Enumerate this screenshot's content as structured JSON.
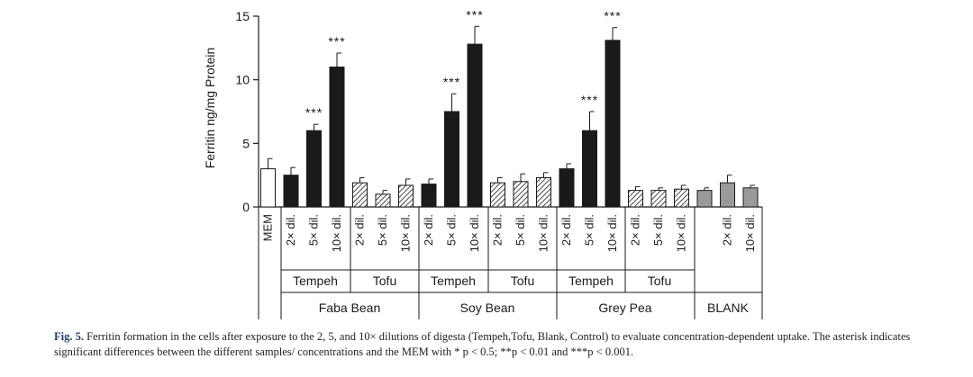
{
  "chart_data": {
    "type": "bar",
    "ylabel": "Ferritin ng/mg Protein",
    "ylim": [
      0,
      15
    ],
    "yticks": [
      "0",
      "5",
      "10",
      "15"
    ],
    "grid": false,
    "legend": "none",
    "colors": {
      "control": "#ffffff",
      "tempeh": "#1a1a1a",
      "tofu_hatch": "#1a1a1a",
      "blank": "#9a9a9a"
    },
    "bars": [
      {
        "label": "MEM",
        "product": "",
        "group": "",
        "style": "control",
        "value": 3.0,
        "error": 0.8,
        "sig": ""
      },
      {
        "label": "2× dil.",
        "product": "Tempeh",
        "group": "Faba Bean",
        "style": "tempeh",
        "value": 2.5,
        "error": 0.6,
        "sig": ""
      },
      {
        "label": "5× dil.",
        "product": "Tempeh",
        "group": "Faba Bean",
        "style": "tempeh",
        "value": 6.0,
        "error": 0.5,
        "sig": "***"
      },
      {
        "label": "10× dil.",
        "product": "Tempeh",
        "group": "Faba Bean",
        "style": "tempeh",
        "value": 11.0,
        "error": 1.1,
        "sig": "***"
      },
      {
        "label": "2× dil.",
        "product": "Tofu",
        "group": "Faba Bean",
        "style": "tofu",
        "value": 1.9,
        "error": 0.4,
        "sig": ""
      },
      {
        "label": "5× dil.",
        "product": "Tofu",
        "group": "Faba Bean",
        "style": "tofu",
        "value": 1.0,
        "error": 0.3,
        "sig": ""
      },
      {
        "label": "10× dil.",
        "product": "Tofu",
        "group": "Faba Bean",
        "style": "tofu",
        "value": 1.7,
        "error": 0.5,
        "sig": ""
      },
      {
        "label": "2× dil.",
        "product": "Tempeh",
        "group": "Soy Bean",
        "style": "tempeh",
        "value": 1.8,
        "error": 0.4,
        "sig": ""
      },
      {
        "label": "5× dil.",
        "product": "Tempeh",
        "group": "Soy Bean",
        "style": "tempeh",
        "value": 7.5,
        "error": 1.4,
        "sig": "***"
      },
      {
        "label": "10× dil.",
        "product": "Tempeh",
        "group": "Soy Bean",
        "style": "tempeh",
        "value": 12.8,
        "error": 1.4,
        "sig": "***"
      },
      {
        "label": "2× dil.",
        "product": "Tofu",
        "group": "Soy Bean",
        "style": "tofu",
        "value": 1.9,
        "error": 0.4,
        "sig": ""
      },
      {
        "label": "5× dil.",
        "product": "Tofu",
        "group": "Soy Bean",
        "style": "tofu",
        "value": 2.0,
        "error": 0.6,
        "sig": ""
      },
      {
        "label": "10× dil.",
        "product": "Tofu",
        "group": "Soy Bean",
        "style": "tofu",
        "value": 2.3,
        "error": 0.4,
        "sig": ""
      },
      {
        "label": "2× dil.",
        "product": "Tempeh",
        "group": "Grey Pea",
        "style": "tempeh",
        "value": 3.0,
        "error": 0.4,
        "sig": ""
      },
      {
        "label": "5× dil.",
        "product": "Tempeh",
        "group": "Grey Pea",
        "style": "tempeh",
        "value": 6.0,
        "error": 1.5,
        "sig": "***"
      },
      {
        "label": "10× dil.",
        "product": "Tempeh",
        "group": "Grey Pea",
        "style": "tempeh",
        "value": 13.1,
        "error": 1.0,
        "sig": "***"
      },
      {
        "label": "2× dil.",
        "product": "Tofu",
        "group": "Grey Pea",
        "style": "tofu",
        "value": 1.3,
        "error": 0.3,
        "sig": ""
      },
      {
        "label": "5× dil.",
        "product": "Tofu",
        "group": "Grey Pea",
        "style": "tofu",
        "value": 1.3,
        "error": 0.2,
        "sig": ""
      },
      {
        "label": "10× dil.",
        "product": "Tofu",
        "group": "Grey Pea",
        "style": "tofu",
        "value": 1.4,
        "error": 0.3,
        "sig": ""
      },
      {
        "label": "",
        "product": "",
        "group": "BLANK",
        "style": "blank",
        "value": 1.3,
        "error": 0.2,
        "sig": ""
      },
      {
        "label": "2× dil.",
        "product": "",
        "group": "BLANK",
        "style": "blank",
        "value": 1.9,
        "error": 0.6,
        "sig": ""
      },
      {
        "label": "10× dil.",
        "product": "",
        "group": "BLANK",
        "style": "blank",
        "value": 1.5,
        "error": 0.2,
        "sig": ""
      }
    ],
    "products": [
      {
        "label": "Tempeh"
      },
      {
        "label": "Tofu"
      },
      {
        "label": "Tempeh"
      },
      {
        "label": "Tofu"
      },
      {
        "label": "Tempeh"
      },
      {
        "label": "Tofu"
      }
    ],
    "groups": [
      {
        "label": "Faba Bean"
      },
      {
        "label": "Soy Bean"
      },
      {
        "label": "Grey Pea"
      },
      {
        "label": "BLANK"
      }
    ]
  },
  "caption": {
    "label": "Fig. 5.",
    "text": "Ferritin formation in the cells after exposure to the 2, 5, and 10× dilutions of digesta (Tempeh,Tofu, Blank, Control) to evaluate concentration-dependent uptake. The asterisk indicates significant differences between the different samples/ concentrations and the MEM with * p < 0.5; **p < 0.01 and ***p < 0.001."
  }
}
